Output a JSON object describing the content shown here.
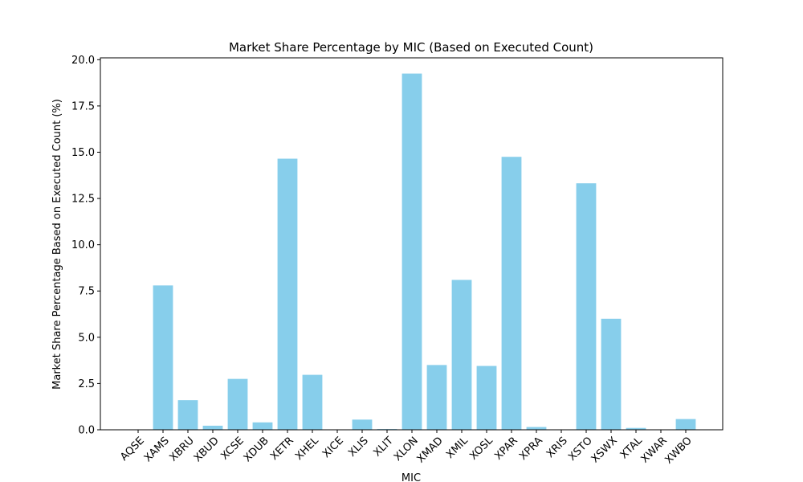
{
  "chart_data": {
    "type": "bar",
    "title": "Market Share Percentage by MIC (Based on Executed Count)",
    "xlabel": "MIC",
    "ylabel": "Market Share Percentage Based on Executed Count (%)",
    "ylim": [
      0,
      20.1
    ],
    "yticks": [
      "0.0",
      "2.5",
      "5.0",
      "7.5",
      "10.0",
      "12.5",
      "15.0",
      "17.5",
      "20.0"
    ],
    "grid": false,
    "bar_color": "#87CEEB",
    "categories": [
      "AQSE",
      "XAMS",
      "XBRU",
      "XBUD",
      "XCSE",
      "XDUB",
      "XETR",
      "XHEL",
      "XICE",
      "XLIS",
      "XLIT",
      "XLON",
      "XMAD",
      "XMIL",
      "XOSL",
      "XPAR",
      "XPRA",
      "XRIS",
      "XSTO",
      "XSWX",
      "XTAL",
      "XWAR",
      "XWBO"
    ],
    "values": [
      0.0,
      7.8,
      1.6,
      0.22,
      2.75,
      0.4,
      14.65,
      2.97,
      0.0,
      0.55,
      0.04,
      19.25,
      3.5,
      8.1,
      3.45,
      14.75,
      0.15,
      0.01,
      13.32,
      6.0,
      0.1,
      0.0,
      0.58
    ]
  }
}
